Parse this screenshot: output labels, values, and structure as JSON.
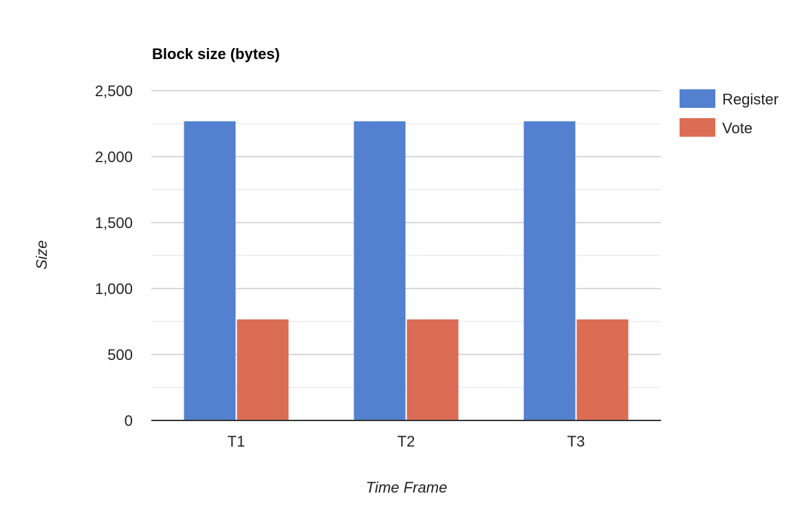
{
  "colors": {
    "register": "#5380cf",
    "vote": "#da6d53",
    "gridline": "#cccccc",
    "minor_gridline": "#ebebeb",
    "baseline": "#333333"
  },
  "chart_data": {
    "type": "bar",
    "title": "Block size (bytes)",
    "xlabel": "Time Frame",
    "ylabel": "Size",
    "categories": [
      "T1",
      "T2",
      "T3"
    ],
    "series": [
      {
        "name": "Register",
        "values": [
          2268,
          2268,
          2268
        ]
      },
      {
        "name": "Vote",
        "values": [
          766,
          766,
          766
        ]
      }
    ],
    "ylim": [
      0,
      2500
    ],
    "yticks": [
      0,
      500,
      1000,
      1500,
      2000,
      2500
    ],
    "ytick_labels": [
      "0",
      "500",
      "1,000",
      "1,500",
      "2,000",
      "2,500"
    ],
    "minor_gridlines": true,
    "legend_position": "right"
  }
}
